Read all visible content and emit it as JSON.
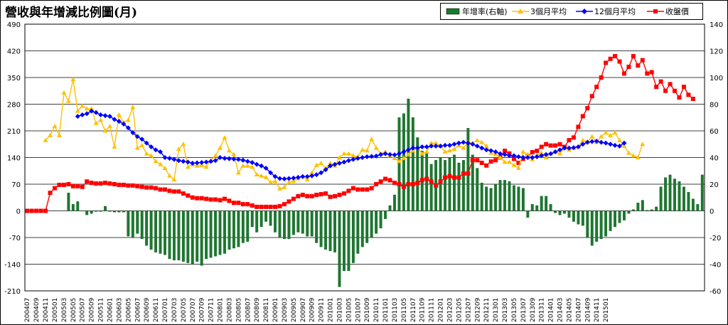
{
  "chart_data": {
    "type": "bar+line",
    "title": "營收與年增減比例圖(月)",
    "x_labels": [
      "200407",
      "200409",
      "200411",
      "200501",
      "200503",
      "200505",
      "200507",
      "200509",
      "200511",
      "200601",
      "200603",
      "200605",
      "200607",
      "200609",
      "200611",
      "200701",
      "200703",
      "200705",
      "200707",
      "200709",
      "200711",
      "200801",
      "200803",
      "200805",
      "200807",
      "200809",
      "200811",
      "200901",
      "200903",
      "200905",
      "200907",
      "200909",
      "200911",
      "201001",
      "201003",
      "201005",
      "201007",
      "201009",
      "201011",
      "201101",
      "201103",
      "201105",
      "201107",
      "201109",
      "201111",
      "201201",
      "201203",
      "201205",
      "201207",
      "201209",
      "201211",
      "201301",
      "201303",
      "201305",
      "201307",
      "201309",
      "201311",
      "201401",
      "201403",
      "201405",
      "201407",
      "201409",
      "201411",
      "201501"
    ],
    "left_axis": {
      "min": -210,
      "max": 490,
      "ticks": [
        -210,
        -140,
        -70,
        0,
        70,
        140,
        210,
        280,
        350,
        420,
        490
      ]
    },
    "right_axis": {
      "min": -60,
      "max": 140,
      "ticks": [
        -60,
        -40,
        -20,
        0,
        20,
        40,
        60,
        80,
        100,
        120,
        140
      ]
    },
    "series": [
      {
        "name": "年增率(右軸)",
        "kind": "bar",
        "axis": "right",
        "color": "#1a7a2e",
        "values": [
          null,
          null,
          null,
          null,
          null,
          null,
          null,
          null,
          null,
          13.5,
          5,
          7,
          0,
          -3,
          -2,
          -0.5,
          -0.5,
          3.5,
          -0.5,
          -1,
          -1,
          -1,
          -19,
          -20,
          -17,
          -21,
          -26,
          -29,
          -31,
          -32,
          -33,
          -36,
          -37,
          -37,
          -38,
          -39,
          -40,
          -38,
          -41,
          -36,
          -35,
          -34,
          -33,
          -32,
          -29,
          -28,
          -27,
          -24,
          -23,
          -12,
          -16,
          -12,
          -8,
          -11,
          -16,
          -20,
          -21,
          -21,
          -18,
          -16,
          -17,
          -19,
          -19,
          -24,
          -27,
          -29,
          -30,
          -31,
          -57,
          -45,
          -45,
          -39,
          -32,
          -27,
          -24,
          -20,
          -17,
          -13,
          -6,
          4,
          12,
          70,
          73,
          84,
          70,
          55,
          45,
          43,
          35,
          38,
          40,
          38,
          40,
          42,
          36,
          38,
          62,
          42,
          32,
          21,
          18,
          17,
          20,
          23,
          23,
          22,
          19,
          18,
          17,
          -5,
          5,
          4,
          11,
          11,
          5,
          -1.5,
          -3,
          -2,
          -5,
          -8,
          -10,
          -11,
          -20,
          -26,
          -23,
          -21,
          -19,
          -15,
          -12,
          -9,
          -7,
          -2,
          1,
          6,
          8,
          0.5,
          1,
          3,
          18,
          25,
          27,
          24,
          22,
          18,
          14,
          9,
          5,
          27
        ]
      },
      {
        "name": "3個月平均",
        "kind": "line",
        "axis": "left",
        "color": "#ffc000",
        "marker": "triangle",
        "values": [
          null,
          null,
          null,
          null,
          185,
          198,
          222,
          198,
          310,
          288,
          345,
          262,
          275,
          268,
          268,
          230,
          238,
          210,
          222,
          168,
          252,
          232,
          238,
          272,
          165,
          172,
          150,
          145,
          130,
          122,
          112,
          92,
          82,
          162,
          175,
          115,
          122,
          118,
          120,
          115,
          132,
          145,
          165,
          192,
          158,
          148,
          100,
          118,
          118,
          115,
          95,
          92,
          88,
          75,
          78,
          58,
          62,
          75,
          78,
          85,
          90,
          82,
          100,
          120,
          125,
          112,
          125,
          118,
          140,
          150,
          150,
          145,
          142,
          160,
          158,
          188,
          165,
          150,
          155,
          145,
          138,
          130,
          138,
          148,
          158,
          165,
          150,
          155,
          178,
          178,
          170,
          155,
          158,
          162,
          172,
          165,
          180,
          178,
          185,
          180,
          170,
          152,
          148,
          140,
          128,
          128,
          120,
          112,
          155,
          148,
          135,
          145,
          152,
          140,
          150,
          155,
          150,
          165,
          160,
          165,
          168,
          185,
          182,
          195,
          180,
          195,
          205,
          198,
          205,
          185,
          170,
          152,
          145,
          140,
          175
        ],
        "start_index": 0
      },
      {
        "name": "12個月平均",
        "kind": "line",
        "axis": "left",
        "color": "#0000ff",
        "marker": "diamond",
        "values": [
          null,
          null,
          null,
          null,
          null,
          null,
          null,
          null,
          null,
          null,
          null,
          248,
          252,
          255,
          262,
          258,
          252,
          250,
          248,
          240,
          235,
          228,
          218,
          205,
          195,
          188,
          178,
          168,
          160,
          155,
          140,
          138,
          135,
          132,
          130,
          128,
          125,
          126,
          127,
          128,
          130,
          132,
          140,
          138,
          137,
          136,
          135,
          133,
          130,
          127,
          122,
          118,
          112,
          100,
          90,
          85,
          84,
          85,
          86,
          88,
          90,
          90,
          92,
          95,
          100,
          108,
          118,
          122,
          125,
          128,
          132,
          135,
          138,
          140,
          142,
          143,
          144,
          148,
          150,
          148,
          147,
          150,
          155,
          160,
          165,
          165,
          168,
          168,
          170,
          170,
          170,
          172,
          172,
          175,
          178,
          180,
          178,
          175,
          170,
          165,
          160,
          158,
          155,
          150,
          148,
          145,
          145,
          142,
          140,
          140,
          140,
          142,
          145,
          148,
          150,
          155,
          160,
          165,
          165,
          166,
          168,
          175,
          180,
          182,
          183,
          180,
          178,
          175,
          172,
          170,
          178
        ],
        "start_index": 10
      },
      {
        "name": "收盤價",
        "kind": "line",
        "axis": "right",
        "color": "#ff0000",
        "marker": "square",
        "values": [
          0,
          0,
          0,
          0,
          0,
          13.5,
          17,
          19.5,
          19.5,
          20,
          18.5,
          18.5,
          18,
          22,
          21,
          20.5,
          20.5,
          21,
          20.5,
          20,
          19.5,
          19.5,
          19,
          19,
          18.5,
          18,
          17.5,
          17.5,
          17,
          16,
          16,
          15,
          14.5,
          14.5,
          13,
          11.5,
          10,
          9.5,
          9.5,
          9,
          8.5,
          8.5,
          8,
          9,
          7.5,
          6,
          6,
          5,
          5,
          4,
          3,
          3,
          3,
          3,
          3,
          3.5,
          5,
          7,
          9,
          11,
          12,
          11,
          11,
          12,
          12.5,
          13,
          10.5,
          11,
          12,
          13,
          15,
          17,
          16,
          16,
          16,
          17,
          20,
          22,
          24,
          23,
          21,
          20,
          18,
          20,
          20,
          21,
          23,
          24,
          22,
          19,
          22,
          25,
          26,
          25,
          25,
          28,
          28,
          38,
          38,
          36,
          34,
          37,
          38,
          40,
          45,
          43,
          39,
          36,
          39,
          41,
          44,
          45,
          48,
          50,
          49,
          49,
          50,
          48,
          53,
          55,
          63,
          71,
          77,
          86,
          93,
          100,
          111,
          114,
          116,
          112,
          103,
          108,
          116,
          109,
          113,
          103,
          104,
          93,
          97,
          90,
          95,
          90,
          85,
          93,
          87,
          84
        ]
      }
    ],
    "legend": [
      "年增率(右軸)",
      "3個月平均",
      "12個月平均",
      "收盤價"
    ]
  }
}
